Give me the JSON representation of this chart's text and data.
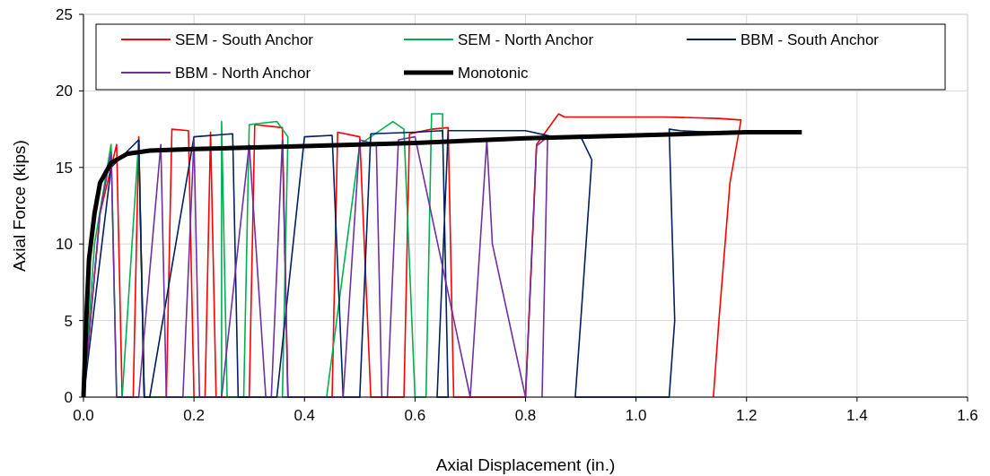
{
  "chart_data": {
    "type": "line",
    "xlabel": "Axial Displacement (in.)",
    "ylabel": "Axial Force (kips)",
    "xlim": [
      0,
      1.6
    ],
    "ylim": [
      0,
      25
    ],
    "xticks": [
      {
        "value": 0,
        "label": "0.0"
      },
      {
        "value": 0.2,
        "label": "0.2"
      },
      {
        "value": 0.4,
        "label": "0.4"
      },
      {
        "value": 0.6,
        "label": "0.6"
      },
      {
        "value": 0.8,
        "label": "0.8"
      },
      {
        "value": 1,
        "label": "1.0"
      },
      {
        "value": 1.2,
        "label": "1.2"
      },
      {
        "value": 1.4,
        "label": "1.4"
      },
      {
        "value": 1.6,
        "label": "1.6"
      }
    ],
    "yticks": [
      0,
      5,
      10,
      15,
      20,
      25
    ],
    "grid": true,
    "legend": "top",
    "marker": "none",
    "line_style": "solid",
    "series": [
      {
        "name": "SEM - South Anchor",
        "color": "#ff0000",
        "x": [
          0,
          0.03,
          0.06,
          0.07,
          0.09,
          0.1,
          0.11,
          0.15,
          0.16,
          0.19,
          0.2,
          0.22,
          0.23,
          0.24,
          0.3,
          0.31,
          0.36,
          0.37,
          0.45,
          0.46,
          0.5,
          0.52,
          0.58,
          0.59,
          0.63,
          0.66,
          0.67,
          0.8,
          0.82,
          0.85,
          0.86,
          0.87,
          1.05,
          1.15,
          1.19,
          1.17,
          1.15,
          1.14
        ],
        "values": [
          0,
          12,
          16.5,
          0,
          0,
          17,
          0,
          0,
          17.5,
          17.4,
          0,
          0,
          17.3,
          0,
          0,
          17.8,
          17.6,
          0,
          0,
          17.3,
          17,
          0,
          0,
          17.2,
          17.5,
          17.6,
          0,
          0,
          16.5,
          18,
          18.5,
          18.3,
          18.3,
          18.2,
          18.1,
          14,
          5,
          0
        ]
      },
      {
        "name": "SEM - North Anchor",
        "color": "#00b050",
        "x": [
          0,
          0.02,
          0.05,
          0.06,
          0.07,
          0.1,
          0.11,
          0.25,
          0.25,
          0.26,
          0.29,
          0.3,
          0.35,
          0.37,
          0.36,
          0.44,
          0.5,
          0.52,
          0.56,
          0.58,
          0.6,
          0.62,
          0.63,
          0.65,
          0.65
        ],
        "values": [
          0,
          10,
          16.5,
          0,
          0,
          16.8,
          0,
          0,
          18,
          0,
          0,
          17.8,
          18,
          17,
          0,
          0,
          16.5,
          17,
          18,
          17.5,
          0,
          0,
          18.5,
          18.5,
          17
        ]
      },
      {
        "name": "BBM - South Anchor",
        "color": "#002060",
        "x": [
          0,
          0.05,
          0.1,
          0.11,
          0.12,
          0.2,
          0.27,
          0.28,
          0.35,
          0.4,
          0.45,
          0.47,
          0.5,
          0.52,
          0.6,
          0.65,
          0.66,
          0.64,
          0.66,
          0.8,
          0.85,
          0.9,
          0.92,
          0.9,
          0.89,
          1.06,
          1.07,
          1.06,
          1.08,
          1.2
        ],
        "values": [
          0,
          15,
          16.8,
          0,
          0,
          17,
          17.2,
          0,
          0,
          17,
          17.1,
          0,
          0,
          17.2,
          17.3,
          17.4,
          0,
          0,
          17.4,
          17.4,
          17,
          17,
          15.5,
          5,
          0,
          0,
          5,
          17.5,
          17.4,
          17.2
        ]
      },
      {
        "name": "BBM - North Anchor",
        "color": "#7030a0",
        "x": [
          0,
          0.03,
          0.05,
          0.06,
          0.1,
          0.14,
          0.15,
          0.18,
          0.2,
          0.21,
          0.25,
          0.3,
          0.33,
          0.34,
          0.36,
          0.37,
          0.47,
          0.5,
          0.53,
          0.54,
          0.55,
          0.57,
          0.6,
          0.7,
          0.73,
          0.74,
          0.8,
          0.82,
          0.84,
          0.83
        ],
        "values": [
          0,
          12,
          16,
          0,
          0,
          16.5,
          0,
          0,
          16.8,
          0,
          0,
          16.5,
          0,
          0,
          16.8,
          0,
          0,
          16.8,
          16.5,
          0,
          0,
          16.8,
          17,
          0,
          16.8,
          10,
          0,
          16.4,
          17,
          0
        ]
      },
      {
        "name": "Monotonic",
        "color": "#000000",
        "x": [
          0,
          0.005,
          0.01,
          0.02,
          0.03,
          0.05,
          0.08,
          0.12,
          0.2,
          0.4,
          0.6,
          0.8,
          1,
          1.2,
          1.3
        ],
        "values": [
          0,
          5,
          9,
          12,
          14,
          15.3,
          15.9,
          16.1,
          16.2,
          16.4,
          16.6,
          16.9,
          17.1,
          17.3,
          17.3
        ]
      }
    ]
  }
}
